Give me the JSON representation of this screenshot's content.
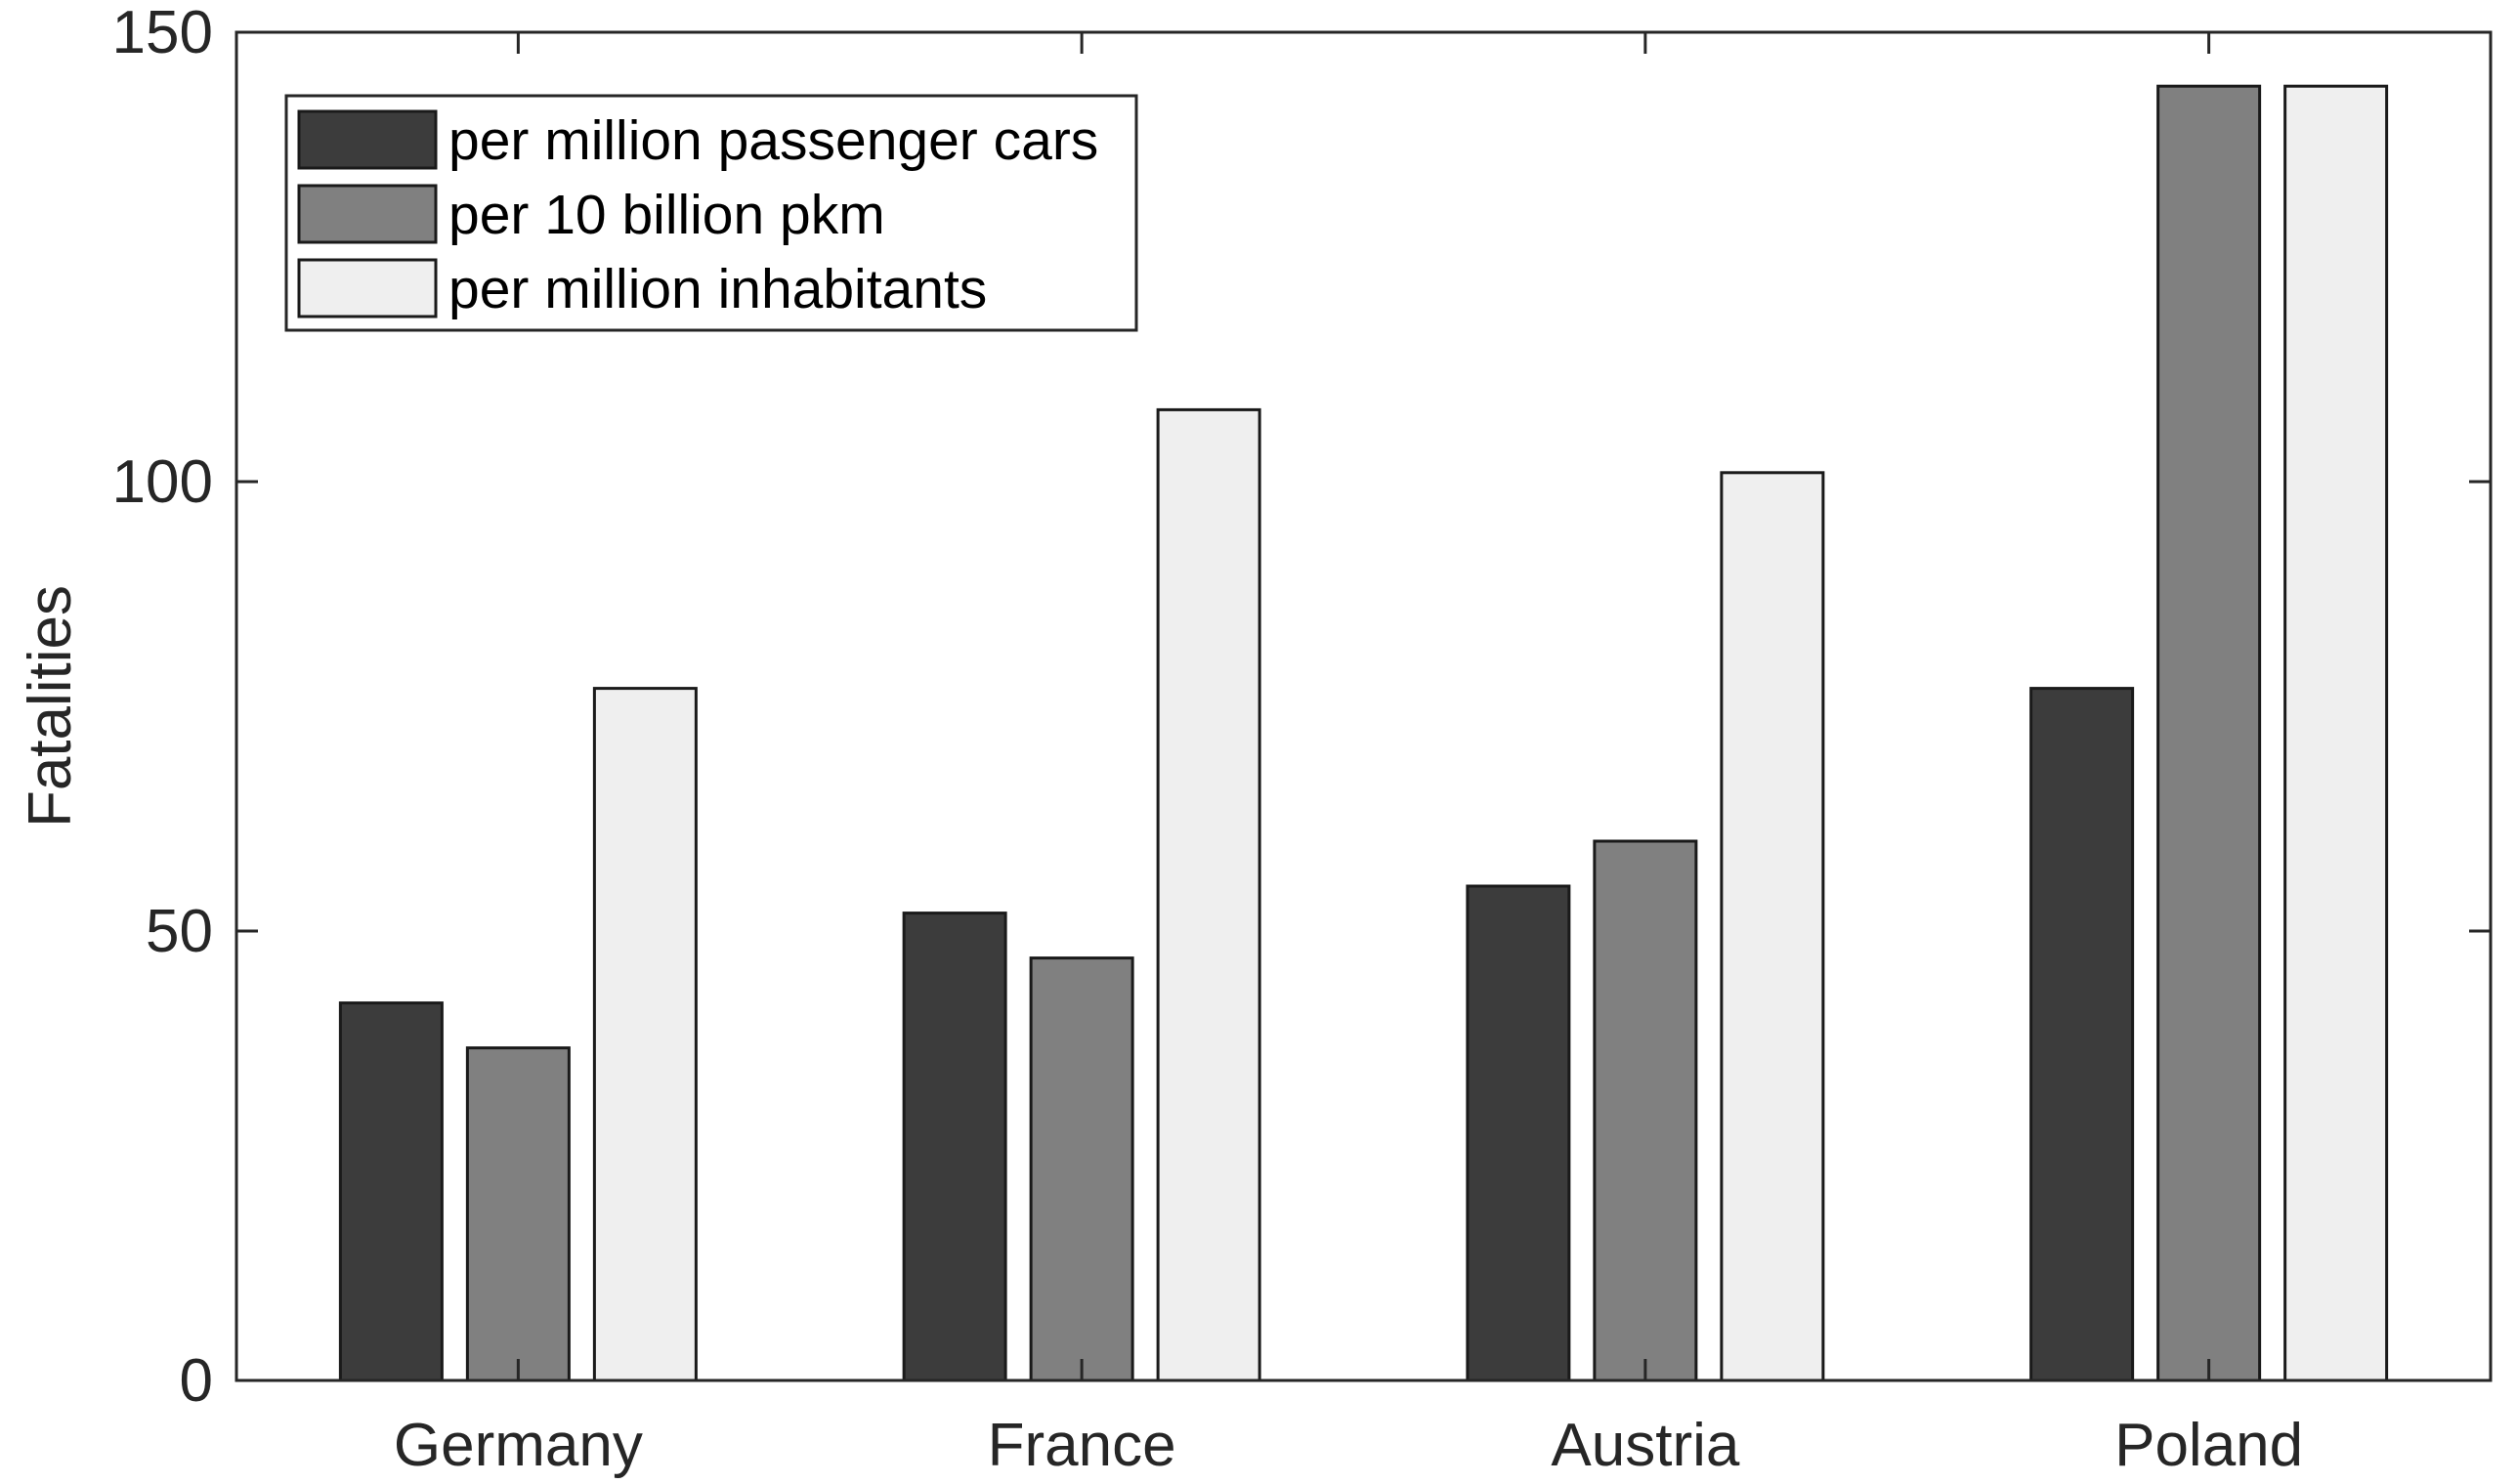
{
  "chart_data": {
    "type": "bar",
    "title": "",
    "xlabel": "",
    "ylabel": "Fatalities",
    "ylim": [
      0,
      150
    ],
    "yticks": [
      0,
      50,
      100,
      150
    ],
    "grid": false,
    "legend_position": "top-left",
    "categories": [
      "Germany",
      "France",
      "Austria",
      "Poland"
    ],
    "series": [
      {
        "name": "per million passenger cars",
        "color": "#3c3c3c",
        "values": [
          42,
          52,
          55,
          77
        ]
      },
      {
        "name": "per 10 billion pkm",
        "color": "#808080",
        "values": [
          37,
          47,
          60,
          144
        ]
      },
      {
        "name": "per million inhabitants",
        "color": "#efefef",
        "values": [
          77,
          108,
          101,
          144
        ]
      }
    ]
  }
}
